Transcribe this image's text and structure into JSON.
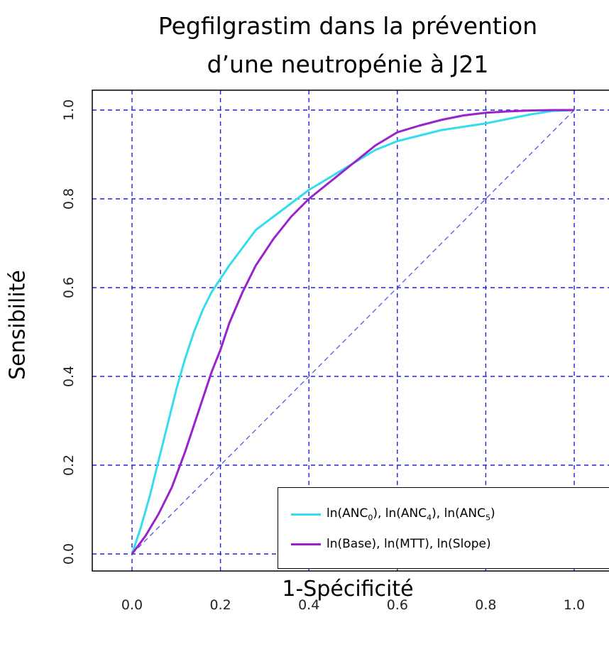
{
  "chart_data": {
    "type": "line",
    "title_line1": "Pegfilgrastim dans la prévention",
    "title_line2": "d’une neutropénie à J21",
    "xlabel": "1-Spécificité",
    "ylabel": "Sensibilité",
    "xlim": [
      -0.1,
      1.05
    ],
    "ylim": [
      -0.04,
      1.04
    ],
    "x_ticks": [
      "0.0",
      "0.2",
      "0.4",
      "0.6",
      "0.8",
      "1.0"
    ],
    "y_ticks": [
      "0.0",
      "0.2",
      "0.4",
      "0.6",
      "0.8",
      "1.0"
    ],
    "grid": true,
    "legend_position": "bottom-right",
    "diagonal_color": "#5555dd",
    "series": [
      {
        "name": "ln(ANC0), ln(ANC4), ln(ANC5)",
        "color": "#33ddee",
        "x": [
          0.0,
          0.02,
          0.04,
          0.06,
          0.08,
          0.1,
          0.12,
          0.14,
          0.16,
          0.18,
          0.2,
          0.22,
          0.25,
          0.28,
          0.32,
          0.36,
          0.4,
          0.45,
          0.5,
          0.55,
          0.6,
          0.7,
          0.8,
          0.9,
          0.95,
          1.0
        ],
        "y": [
          0.0,
          0.06,
          0.13,
          0.21,
          0.29,
          0.37,
          0.44,
          0.5,
          0.55,
          0.59,
          0.62,
          0.65,
          0.69,
          0.73,
          0.76,
          0.79,
          0.82,
          0.85,
          0.88,
          0.91,
          0.93,
          0.955,
          0.97,
          0.99,
          0.998,
          1.0
        ]
      },
      {
        "name": "ln(Base), ln(MTT), ln(Slope)",
        "color": "#9922cc",
        "x": [
          0.0,
          0.03,
          0.06,
          0.09,
          0.12,
          0.15,
          0.18,
          0.2,
          0.22,
          0.25,
          0.28,
          0.32,
          0.36,
          0.4,
          0.45,
          0.5,
          0.55,
          0.6,
          0.65,
          0.7,
          0.75,
          0.8,
          0.85,
          0.9,
          0.95,
          1.0
        ],
        "y": [
          0.0,
          0.04,
          0.09,
          0.15,
          0.23,
          0.32,
          0.41,
          0.46,
          0.52,
          0.59,
          0.65,
          0.71,
          0.76,
          0.8,
          0.84,
          0.88,
          0.92,
          0.95,
          0.965,
          0.978,
          0.988,
          0.994,
          0.997,
          0.999,
          1.0,
          1.0
        ]
      }
    ],
    "legend": {
      "entry1_prefix": "ln(ANC",
      "entry1_sub1": "0",
      "entry1_mid1": "),  ln(ANC",
      "entry1_sub2": "4",
      "entry1_mid2": "), ln(ANC",
      "entry1_sub3": "5",
      "entry1_suffix": ")",
      "entry2": "ln(Base),  ln(MTT), ln(Slope)"
    }
  }
}
